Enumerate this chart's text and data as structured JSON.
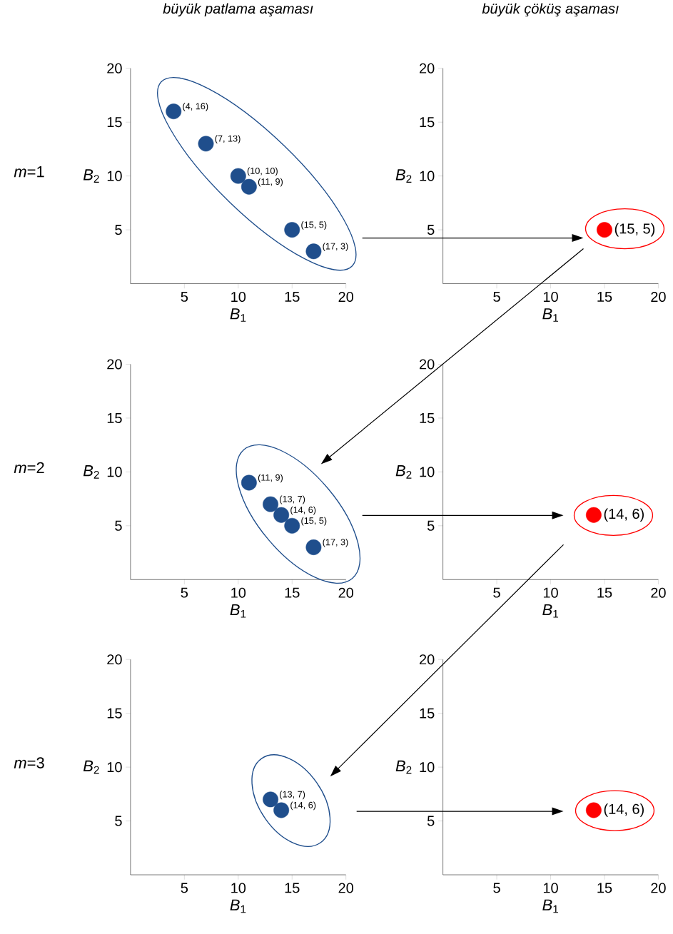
{
  "chart_data": [
    {
      "type": "scatter",
      "title": "büyük patlama aşaması",
      "xlabel": "*B*$_{1}$",
      "ylabel": "*B*$_{2}$",
      "annotations": [
        "*m*=1"
      ],
      "x": [
        4,
        7,
        10,
        11,
        15,
        17
      ],
      "values": [
        16,
        13,
        10,
        9,
        5,
        3
      ],
      "value_labels": [
        "(4, 16)",
        "(7, 13)",
        "(10, 10)",
        "(11, 9)",
        "(15, 5)",
        "(17, 3)"
      ],
      "color": "#1f4e8c",
      "xlim": [
        0,
        20
      ],
      "ylim": [
        0,
        20
      ],
      "xticks": [
        5,
        10,
        15,
        20
      ],
      "yticks": [
        5,
        10,
        15,
        20
      ]
    },
    {
      "type": "scatter",
      "title": "büyük çöküş aşaması",
      "xlabel": "*B*$_{1}$",
      "ylabel": "*B*$_{2}$",
      "x": [
        15
      ],
      "values": [
        5
      ],
      "value_labels": [
        "(15, 5)"
      ],
      "color": "#ff0000",
      "xlim": [
        0,
        20
      ],
      "ylim": [
        0,
        20
      ],
      "xticks": [
        5,
        10,
        15,
        20
      ],
      "yticks": [
        5,
        10,
        15,
        20
      ]
    },
    {
      "type": "scatter",
      "xlabel": "*B*$_{1}$",
      "ylabel": "*B*$_{2}$",
      "annotations": [
        "*m*=2"
      ],
      "x": [
        11,
        13,
        14,
        15,
        17
      ],
      "values": [
        9,
        7,
        6,
        5,
        3
      ],
      "value_labels": [
        "(11, 9)",
        "(13, 7)",
        "(14, 6)",
        "(15, 5)",
        "(17, 3)"
      ],
      "color": "#1f4e8c",
      "xlim": [
        0,
        20
      ],
      "ylim": [
        0,
        20
      ],
      "xticks": [
        5,
        10,
        15,
        20
      ],
      "yticks": [
        5,
        10,
        15,
        20
      ]
    },
    {
      "type": "scatter",
      "xlabel": "*B*$_{1}$",
      "ylabel": "*B*$_{2}$",
      "x": [
        14
      ],
      "values": [
        6
      ],
      "value_labels": [
        "(14, 6)"
      ],
      "color": "#ff0000",
      "xlim": [
        0,
        20
      ],
      "ylim": [
        0,
        20
      ],
      "xticks": [
        5,
        10,
        15,
        20
      ],
      "yticks": [
        5,
        10,
        15,
        20
      ]
    },
    {
      "type": "scatter",
      "xlabel": "*B*$_{1}$",
      "ylabel": "*B*$_{2}$",
      "annotations": [
        "*m*=3"
      ],
      "x": [
        13,
        14
      ],
      "values": [
        7,
        6
      ],
      "value_labels": [
        "(13, 7)",
        "(14, 6)"
      ],
      "color": "#1f4e8c",
      "xlim": [
        0,
        20
      ],
      "ylim": [
        0,
        20
      ],
      "xticks": [
        5,
        10,
        15,
        20
      ],
      "yticks": [
        5,
        10,
        15,
        20
      ]
    },
    {
      "type": "scatter",
      "xlabel": "*B*$_{1}$",
      "ylabel": "*B*$_{2}$",
      "x": [
        14
      ],
      "values": [
        6
      ],
      "value_labels": [
        "(14, 6)"
      ],
      "color": "#ff0000",
      "xlim": [
        0,
        20
      ],
      "ylim": [
        0,
        20
      ],
      "xticks": [
        5,
        10,
        15,
        20
      ],
      "yticks": [
        5,
        10,
        15,
        20
      ]
    }
  ]
}
